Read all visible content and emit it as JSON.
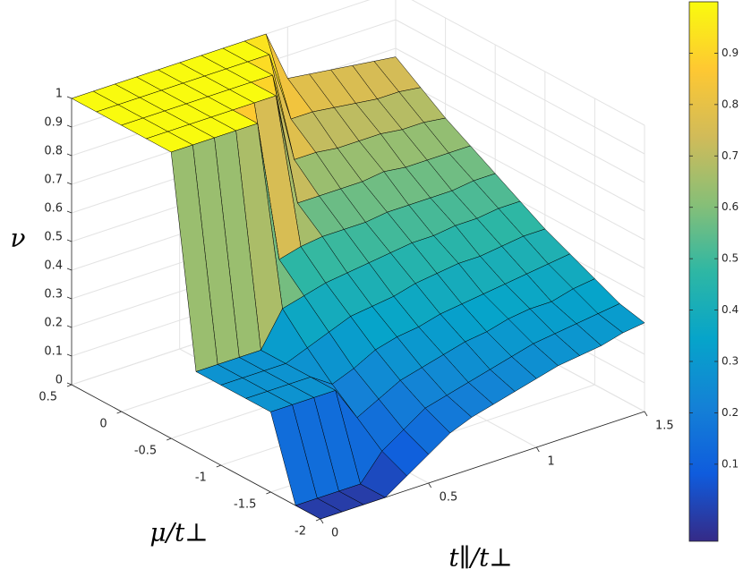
{
  "chart_data": {
    "type": "surface",
    "xlabel": "t∥/t⊥",
    "ylabel": "μ/t⊥",
    "zlabel": "ν",
    "x": [
      0,
      0.1,
      0.2,
      0.3,
      0.4,
      0.5,
      0.6,
      0.7,
      0.8,
      0.9,
      1.0,
      1.1,
      1.2,
      1.3,
      1.4,
      1.5
    ],
    "y": [
      -2,
      -1.75,
      -1.5,
      -1.25,
      -1,
      -0.75,
      -0.5,
      -0.25,
      0,
      0.25,
      0.5
    ],
    "values": [
      [
        0,
        0,
        0.28,
        0.28,
        0.28,
        0.28,
        1,
        1,
        1,
        1,
        1
      ],
      [
        0,
        0,
        0.28,
        0.28,
        0.28,
        0.28,
        1,
        1,
        1,
        1,
        1
      ],
      [
        0,
        0,
        0.28,
        0.28,
        0.28,
        0.28,
        1,
        1,
        1,
        1,
        1
      ],
      [
        0,
        0,
        0.28,
        0.28,
        0.28,
        0.28,
        1,
        1,
        1,
        1,
        1
      ],
      [
        0.05,
        0.09,
        0.16,
        0.23,
        0.31,
        0.4,
        1,
        1,
        1,
        1,
        1
      ],
      [
        0.1,
        0.14,
        0.2,
        0.26,
        0.34,
        0.42,
        0.5,
        1,
        1,
        1,
        1
      ],
      [
        0.15,
        0.19,
        0.24,
        0.3,
        0.37,
        0.44,
        0.52,
        1,
        1,
        1,
        1
      ],
      [
        0.18,
        0.21,
        0.26,
        0.32,
        0.38,
        0.45,
        0.53,
        0.6,
        1,
        1,
        1
      ],
      [
        0.2,
        0.23,
        0.28,
        0.33,
        0.39,
        0.46,
        0.53,
        0.6,
        0.68,
        1,
        1
      ],
      [
        0.22,
        0.25,
        0.3,
        0.35,
        0.41,
        0.47,
        0.53,
        0.6,
        0.68,
        0.75,
        1
      ],
      [
        0.24,
        0.27,
        0.31,
        0.36,
        0.42,
        0.48,
        0.54,
        0.6,
        0.67,
        0.75,
        0.82
      ],
      [
        0.26,
        0.29,
        0.33,
        0.37,
        0.43,
        0.48,
        0.54,
        0.61,
        0.67,
        0.74,
        0.81
      ],
      [
        0.27,
        0.3,
        0.34,
        0.38,
        0.43,
        0.49,
        0.54,
        0.6,
        0.67,
        0.73,
        0.8
      ],
      [
        0.28,
        0.31,
        0.34,
        0.39,
        0.44,
        0.49,
        0.54,
        0.6,
        0.66,
        0.72,
        0.79
      ],
      [
        0.3,
        0.32,
        0.36,
        0.4,
        0.45,
        0.5,
        0.55,
        0.6,
        0.66,
        0.72,
        0.78
      ],
      [
        0.31,
        0.33,
        0.37,
        0.41,
        0.45,
        0.5,
        0.55,
        0.6,
        0.65,
        0.71,
        0.77
      ]
    ],
    "xlim": [
      0,
      1.5
    ],
    "ylim": [
      -2,
      0.5
    ],
    "zlim": [
      0,
      1
    ],
    "xticks": [
      0,
      0.5,
      1,
      1.5
    ],
    "yticks": [
      -2,
      -1.5,
      -1,
      -0.5,
      0,
      0.5
    ],
    "zticks": [
      0,
      0.1,
      0.2,
      0.3,
      0.4,
      0.5,
      0.6,
      0.7,
      0.8,
      0.9,
      1
    ],
    "colormap": "parula",
    "grid": true,
    "colorbar": {
      "clim": [
        -0.05,
        1
      ],
      "ticks": [
        0.1,
        0.2,
        0.3,
        0.4,
        0.5,
        0.6,
        0.7,
        0.8,
        0.9
      ]
    }
  }
}
